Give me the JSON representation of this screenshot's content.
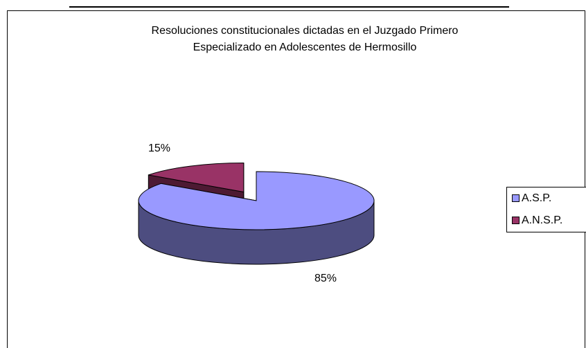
{
  "chart_data": {
    "type": "pie",
    "title": "Resoluciones constitucionales dictadas en el Juzgado Primero Especializado en Adolescentes de Hermosillo",
    "categories": [
      "A.S.P.",
      "A.N.S.P."
    ],
    "values": [
      85,
      15
    ],
    "value_labels": [
      "85%",
      "15%"
    ],
    "colors": [
      "#9999ff",
      "#993366"
    ],
    "legend": "right"
  }
}
